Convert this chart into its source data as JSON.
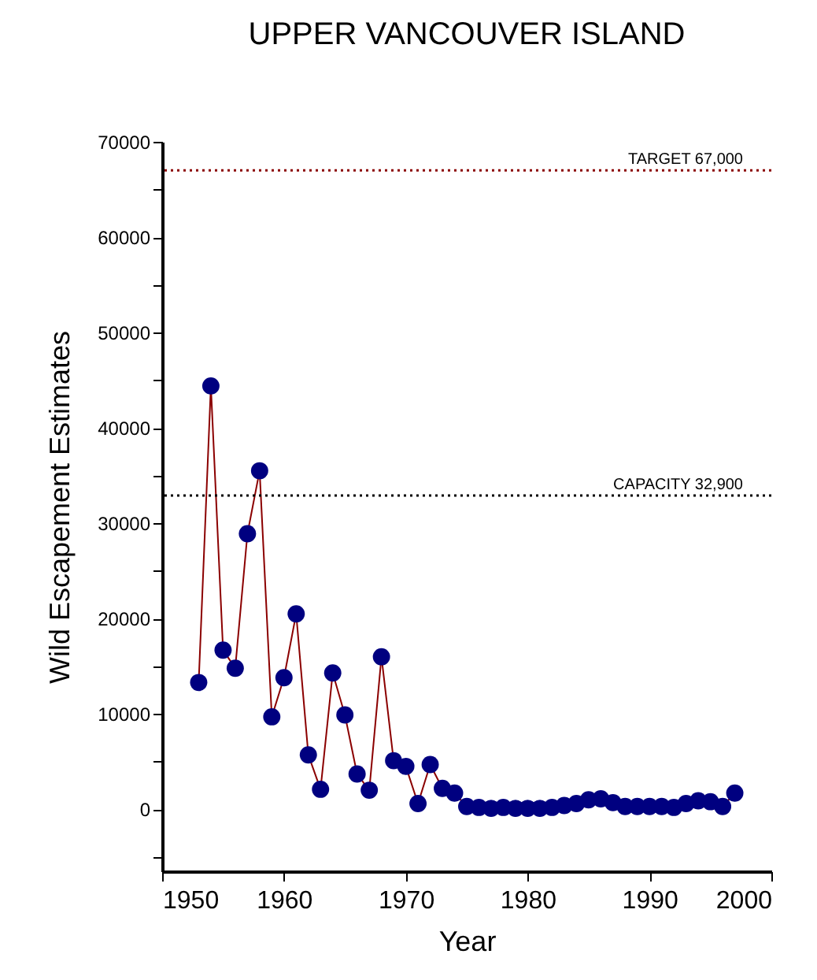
{
  "chart_data": {
    "type": "line",
    "title": "UPPER VANCOUVER ISLAND",
    "xlabel": "Year",
    "ylabel": "Wild Escapement Estimates",
    "x": [
      1953,
      1954,
      1955,
      1956,
      1957,
      1958,
      1959,
      1960,
      1961,
      1962,
      1963,
      1964,
      1965,
      1966,
      1967,
      1968,
      1969,
      1970,
      1971,
      1972,
      1973,
      1974,
      1975,
      1976,
      1977,
      1978,
      1979,
      1980,
      1981,
      1982,
      1983,
      1984,
      1985,
      1986,
      1987,
      1988,
      1989,
      1990,
      1991,
      1992,
      1993,
      1994,
      1995,
      1996,
      1997
    ],
    "series": [
      {
        "color": "#000080",
        "values": [
          13300,
          44400,
          16700,
          14800,
          28900,
          35500,
          9700,
          13800,
          20500,
          5700,
          2100,
          14300,
          9900,
          3700,
          2000,
          16000,
          5100,
          4500,
          600,
          4700,
          2200,
          1700,
          300,
          200,
          100,
          200,
          100,
          100,
          100,
          200,
          400,
          600,
          1000,
          1100,
          700,
          300,
          300,
          300,
          300,
          200,
          600,
          900,
          800,
          300,
          1700
        ]
      }
    ],
    "marker": "circle",
    "line_style": "solid",
    "grid": false,
    "xlim": [
      1950,
      2000
    ],
    "xticks": [
      1950,
      1960,
      1970,
      1980,
      1990,
      2000
    ],
    "ylim": [
      -6500,
      70000
    ],
    "yticks": [
      {
        "value": -5000,
        "label": null
      },
      0,
      {
        "value": 5000,
        "label": null
      },
      10000,
      {
        "value": 15000,
        "label": null
      },
      20000,
      {
        "value": 25000,
        "label": null
      },
      30000,
      {
        "value": 35000,
        "label": null
      },
      40000,
      {
        "value": 45000,
        "label": null
      },
      50000,
      {
        "value": 55000,
        "label": null
      },
      60000,
      {
        "value": 65000,
        "label": null
      },
      70000
    ],
    "ref_lines": [
      {
        "axis": "y",
        "value": 67000,
        "label": "TARGET   67,000",
        "color": "#8b0000",
        "line_style": "dotted"
      },
      {
        "axis": "y",
        "value": 32900,
        "label": "CAPACITY   32,900",
        "color": "#000000",
        "line_style": "dotted"
      }
    ]
  }
}
